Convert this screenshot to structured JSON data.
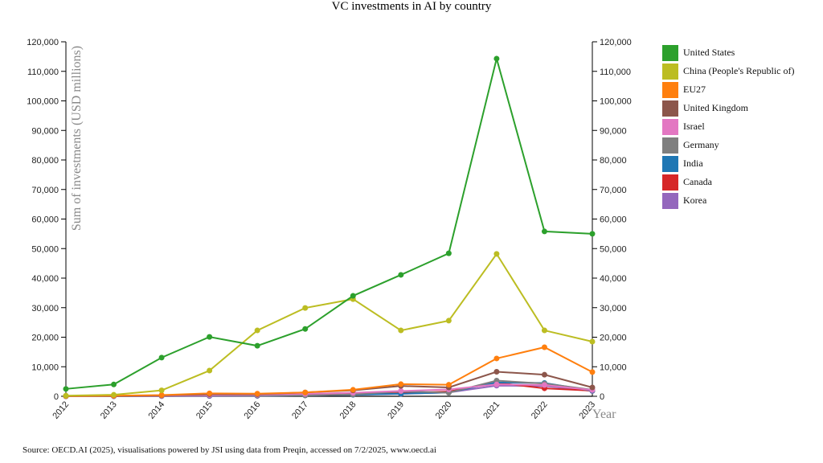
{
  "page": {
    "title": "VC investments in AI by country",
    "source": "Source: OECD.AI (2025), visualisations powered by JSI using data from Preqin, accessed on 7/2/2025, www.oecd.ai"
  },
  "chart_data": {
    "type": "line",
    "title": "VC investments in AI by country",
    "xlabel": "Year",
    "ylabel": "Sum of investments (USD millions)",
    "ylim": [
      0,
      120000
    ],
    "yticks": [
      0,
      10000,
      20000,
      30000,
      40000,
      50000,
      60000,
      70000,
      80000,
      90000,
      100000,
      110000,
      120000
    ],
    "ytick_labels": [
      "0",
      "10,000",
      "20,000",
      "30,000",
      "40,000",
      "50,000",
      "60,000",
      "70,000",
      "80,000",
      "90,000",
      "100,000",
      "110,000",
      "120,000"
    ],
    "dual_y_axis": true,
    "grid": false,
    "legend_position": "right",
    "categories": [
      "2012",
      "2013",
      "2014",
      "2015",
      "2016",
      "2017",
      "2018",
      "2019",
      "2020",
      "2021",
      "2022",
      "2023"
    ],
    "series": [
      {
        "name": "United States",
        "color": "#2ca02c",
        "values": [
          2500,
          4000,
          13100,
          20100,
          17100,
          22800,
          34000,
          41100,
          48400,
          114300,
          55800,
          55000
        ]
      },
      {
        "name": "China (People's Republic of)",
        "color": "#bcbd22",
        "values": [
          200,
          500,
          2000,
          8700,
          22300,
          29900,
          32900,
          22300,
          25600,
          48200,
          22300,
          18500
        ]
      },
      {
        "name": "EU27",
        "color": "#ff7f0e",
        "values": [
          100,
          200,
          400,
          1000,
          900,
          1300,
          2200,
          4100,
          3900,
          12800,
          16600,
          8200
        ]
      },
      {
        "name": "United Kingdom",
        "color": "#8c564b",
        "values": [
          50,
          150,
          300,
          700,
          700,
          1300,
          2000,
          3500,
          3000,
          8300,
          7300,
          3000
        ]
      },
      {
        "name": "Israel",
        "color": "#e377c2",
        "values": [
          50,
          100,
          200,
          400,
          500,
          800,
          1200,
          1800,
          2300,
          4000,
          3800,
          2100
        ]
      },
      {
        "name": "Germany",
        "color": "#7f7f7f",
        "values": [
          30,
          80,
          100,
          300,
          300,
          300,
          600,
          1700,
          1200,
          5300,
          4300,
          2200
        ]
      },
      {
        "name": "India",
        "color": "#1f77b4",
        "values": [
          20,
          40,
          100,
          200,
          200,
          300,
          500,
          900,
          1300,
          4700,
          4500,
          1900
        ]
      },
      {
        "name": "Canada",
        "color": "#d62728",
        "values": [
          30,
          50,
          100,
          200,
          200,
          400,
          700,
          1100,
          1600,
          4600,
          2700,
          1900
        ]
      },
      {
        "name": "Korea",
        "color": "#9467bd",
        "values": [
          10,
          20,
          50,
          100,
          150,
          300,
          500,
          800,
          1300,
          3600,
          3500,
          1800
        ]
      }
    ]
  }
}
